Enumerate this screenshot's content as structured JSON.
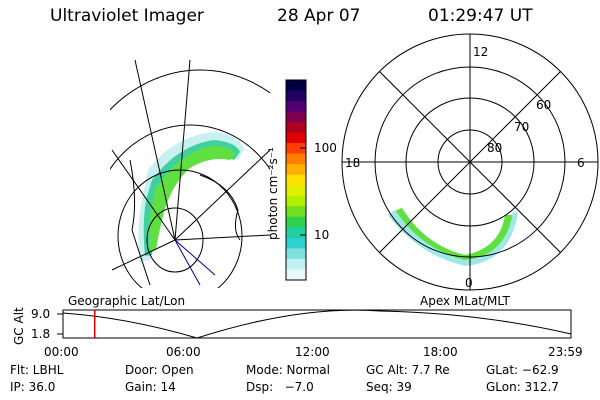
{
  "header": {
    "instrument": "Ultraviolet Imager",
    "date": "28 Apr 07",
    "time": "01:29:47 UT"
  },
  "colorbar": {
    "label": "photon cm⁻²s⁻¹",
    "ticks": [
      "100",
      "10"
    ],
    "colors": [
      "#000040",
      "#200060",
      "#500070",
      "#800050",
      "#b00020",
      "#e00000",
      "#ff4000",
      "#ff8000",
      "#ffb000",
      "#ffe000",
      "#e0f000",
      "#b0f000",
      "#70e020",
      "#30d050",
      "#20d0a0",
      "#30d0d0",
      "#80e0e0",
      "#c0f0f0",
      "#e8f8f8"
    ]
  },
  "left_map": {
    "label": "Geographic Lat/Lon"
  },
  "right_map": {
    "label": "Apex MLat/MLT",
    "mlt_labels": [
      "12",
      "18",
      "6",
      "0"
    ],
    "mlat_labels": [
      "60",
      "70",
      "80"
    ]
  },
  "timeline": {
    "ylabel": "GC Alt",
    "yticks": [
      "9.0",
      "1.8"
    ],
    "xticks": [
      "00:00",
      "06:00",
      "12:00",
      "18:00",
      "23:59"
    ],
    "marker_time_fraction": 0.0624
  },
  "info": {
    "filter": "Flt: LBHL",
    "door": "Door: Open",
    "mode": "Mode: Normal",
    "gc_alt": "GC Alt: 7.7 Re",
    "glat": "GLat: −62.9",
    "ip": "IP: 36.0",
    "gain": "Gain: 14",
    "dsp": "Dsp:   −7.0",
    "seq": "Seq: 39",
    "glon": "GLon: 312.7"
  }
}
